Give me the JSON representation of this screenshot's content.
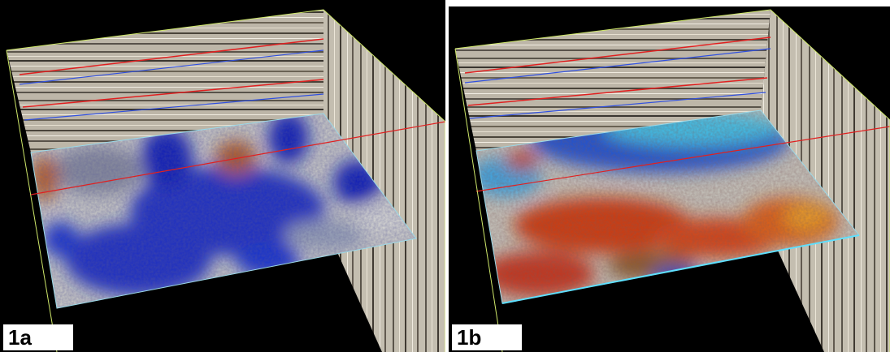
{
  "panels": [
    {
      "label": "1a",
      "slice_palette": [
        "#0a1fb8",
        "#2740d0",
        "#9aa4b8",
        "#d8d8d0",
        "#b85a1a"
      ]
    },
    {
      "label": "1b",
      "slice_palette": [
        "#3ec6f0",
        "#1e52d8",
        "#c8c8c0",
        "#d23a10",
        "#f0a020"
      ]
    }
  ],
  "colors": {
    "background": "#000000",
    "seismic_light": "#d8d2c4",
    "seismic_dark": "#3a3630",
    "horizon_red": "#e02020",
    "horizon_blue": "#3050e0",
    "frame_line": "#cfe86a",
    "edge_cyan": "#5fe0ff"
  }
}
